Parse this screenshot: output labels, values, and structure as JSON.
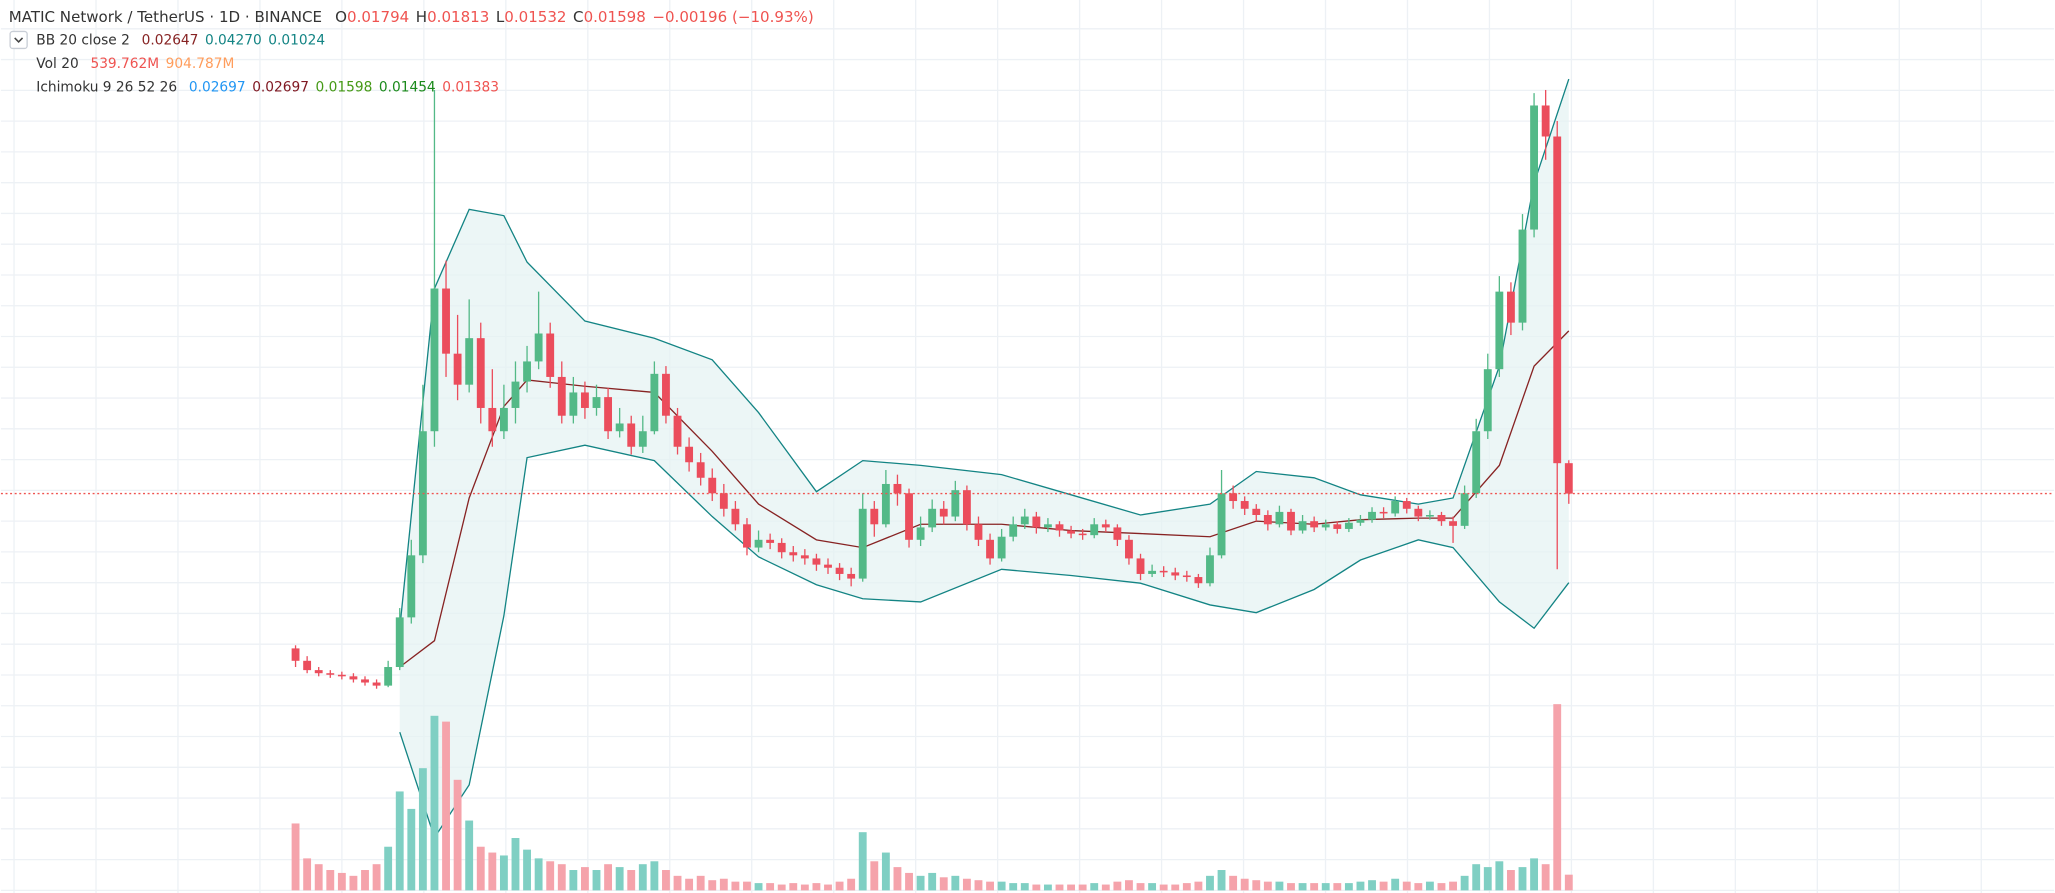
{
  "header": {
    "symbol": "MATIC Network / TetherUS · 1D · BINANCE",
    "quote_color": "#ef5350",
    "quote": [
      {
        "key": "O",
        "value": "0.01794"
      },
      {
        "key": "H",
        "value": "0.01813"
      },
      {
        "key": "L",
        "value": "0.01532"
      },
      {
        "key": "C",
        "value": "0.01598"
      }
    ],
    "change": "−0.00196 (−10.93%)"
  },
  "indicators": [
    {
      "name": "BB 20 close 2",
      "values": [
        {
          "text": "0.02647",
          "color": "#872323"
        },
        {
          "text": "0.04270",
          "color": "#138484"
        },
        {
          "text": "0.01024",
          "color": "#138484"
        }
      ]
    },
    {
      "name": "Vol 20",
      "values": [
        {
          "text": "539.762M",
          "color": "#ef5350"
        },
        {
          "text": "904.787M",
          "color": "#ff9d5c"
        }
      ]
    },
    {
      "name": "Ichimoku 9 26 52 26",
      "values": [
        {
          "text": "0.02697",
          "color": "#2196f3"
        },
        {
          "text": "0.02697",
          "color": "#801922"
        },
        {
          "text": "0.01598",
          "color": "#459915"
        },
        {
          "text": "0.01454",
          "color": "#1b8a1b"
        },
        {
          "text": "0.01383",
          "color": "#ef5350"
        }
      ]
    }
  ],
  "chart_data": {
    "type": "candlestick",
    "ylim": [
      -0.0096,
      0.0478
    ],
    "volume_ylim": [
      0,
      15300
    ],
    "up_color": "#53b987",
    "down_color": "#eb4d5c",
    "volume_up_color": "#7fcfc3",
    "volume_down_color": "#f5a3ab",
    "price_line_color": "#ef5350",
    "candles": [
      [
        0.006,
        0.0062,
        0.0048,
        0.0052
      ],
      [
        0.0052,
        0.0055,
        0.0044,
        0.0046
      ],
      [
        0.0046,
        0.0048,
        0.0042,
        0.0044
      ],
      [
        0.0044,
        0.0046,
        0.0041,
        0.0043
      ],
      [
        0.0043,
        0.0045,
        0.004,
        0.0042
      ],
      [
        0.0042,
        0.0044,
        0.0038,
        0.004
      ],
      [
        0.004,
        0.0042,
        0.0036,
        0.0038
      ],
      [
        0.0038,
        0.004,
        0.0034,
        0.0036
      ],
      [
        0.0036,
        0.0052,
        0.0035,
        0.0048
      ],
      [
        0.0048,
        0.0086,
        0.0046,
        0.008
      ],
      [
        0.008,
        0.013,
        0.0076,
        0.012
      ],
      [
        0.012,
        0.023,
        0.0115,
        0.02
      ],
      [
        0.02,
        0.042,
        0.019,
        0.0292
      ],
      [
        0.0292,
        0.031,
        0.0235,
        0.025
      ],
      [
        0.025,
        0.0275,
        0.022,
        0.023
      ],
      [
        0.023,
        0.0285,
        0.0225,
        0.026
      ],
      [
        0.026,
        0.027,
        0.0205,
        0.0215
      ],
      [
        0.0215,
        0.024,
        0.019,
        0.02
      ],
      [
        0.02,
        0.023,
        0.0195,
        0.0215
      ],
      [
        0.0215,
        0.0245,
        0.0205,
        0.0232
      ],
      [
        0.0232,
        0.0255,
        0.0225,
        0.0245
      ],
      [
        0.0245,
        0.029,
        0.024,
        0.0263
      ],
      [
        0.0263,
        0.027,
        0.0228,
        0.0235
      ],
      [
        0.0235,
        0.0245,
        0.0205,
        0.021
      ],
      [
        0.021,
        0.0235,
        0.0205,
        0.0225
      ],
      [
        0.0225,
        0.0232,
        0.0208,
        0.0215
      ],
      [
        0.0215,
        0.023,
        0.021,
        0.0222
      ],
      [
        0.0222,
        0.0228,
        0.0195,
        0.02
      ],
      [
        0.02,
        0.0215,
        0.0196,
        0.0205
      ],
      [
        0.0205,
        0.021,
        0.0185,
        0.019
      ],
      [
        0.019,
        0.021,
        0.0186,
        0.02
      ],
      [
        0.02,
        0.0245,
        0.0198,
        0.0237
      ],
      [
        0.0237,
        0.0242,
        0.0205,
        0.021
      ],
      [
        0.021,
        0.0215,
        0.0185,
        0.019
      ],
      [
        0.019,
        0.0196,
        0.0174,
        0.018
      ],
      [
        0.018,
        0.0186,
        0.0165,
        0.017
      ],
      [
        0.017,
        0.0176,
        0.0155,
        0.016
      ],
      [
        0.016,
        0.0166,
        0.0145,
        0.015
      ],
      [
        0.015,
        0.0155,
        0.0136,
        0.014
      ],
      [
        0.014,
        0.0144,
        0.012,
        0.0125
      ],
      [
        0.0125,
        0.0136,
        0.0122,
        0.013
      ],
      [
        0.013,
        0.0134,
        0.0124,
        0.0128
      ],
      [
        0.0128,
        0.0131,
        0.0118,
        0.0122
      ],
      [
        0.0122,
        0.0126,
        0.0116,
        0.012
      ],
      [
        0.012,
        0.0124,
        0.0114,
        0.0118
      ],
      [
        0.0118,
        0.0121,
        0.011,
        0.0114
      ],
      [
        0.0114,
        0.0118,
        0.0108,
        0.0112
      ],
      [
        0.0112,
        0.0115,
        0.0104,
        0.0108
      ],
      [
        0.0108,
        0.0112,
        0.01,
        0.0105
      ],
      [
        0.0105,
        0.016,
        0.0103,
        0.015
      ],
      [
        0.015,
        0.0155,
        0.0132,
        0.014
      ],
      [
        0.014,
        0.0175,
        0.0138,
        0.0166
      ],
      [
        0.0166,
        0.0172,
        0.0152,
        0.016
      ],
      [
        0.016,
        0.0163,
        0.0125,
        0.013
      ],
      [
        0.013,
        0.0145,
        0.0126,
        0.0138
      ],
      [
        0.0138,
        0.0156,
        0.0135,
        0.015
      ],
      [
        0.015,
        0.0155,
        0.014,
        0.0145
      ],
      [
        0.0145,
        0.0168,
        0.0142,
        0.0162
      ],
      [
        0.0162,
        0.0165,
        0.0136,
        0.014
      ],
      [
        0.014,
        0.0145,
        0.0126,
        0.013
      ],
      [
        0.013,
        0.0134,
        0.0114,
        0.0118
      ],
      [
        0.0118,
        0.0137,
        0.0116,
        0.0132
      ],
      [
        0.0132,
        0.0145,
        0.0129,
        0.014
      ],
      [
        0.014,
        0.015,
        0.0137,
        0.0145
      ],
      [
        0.0145,
        0.0148,
        0.0134,
        0.0138
      ],
      [
        0.0138,
        0.0144,
        0.0135,
        0.014
      ],
      [
        0.014,
        0.0142,
        0.0132,
        0.0136
      ],
      [
        0.0136,
        0.0139,
        0.0131,
        0.0134
      ],
      [
        0.0134,
        0.0137,
        0.013,
        0.0133
      ],
      [
        0.0133,
        0.0144,
        0.0131,
        0.014
      ],
      [
        0.014,
        0.0143,
        0.0135,
        0.0138
      ],
      [
        0.0138,
        0.014,
        0.0126,
        0.013
      ],
      [
        0.013,
        0.0133,
        0.0114,
        0.0118
      ],
      [
        0.0118,
        0.0121,
        0.0104,
        0.0108
      ],
      [
        0.0108,
        0.0114,
        0.0106,
        0.011
      ],
      [
        0.011,
        0.0113,
        0.0106,
        0.0109
      ],
      [
        0.0109,
        0.0112,
        0.0104,
        0.0107
      ],
      [
        0.0107,
        0.011,
        0.0103,
        0.0106
      ],
      [
        0.0106,
        0.0108,
        0.0099,
        0.0102
      ],
      [
        0.0102,
        0.0125,
        0.01,
        0.012
      ],
      [
        0.012,
        0.0175,
        0.0118,
        0.016
      ],
      [
        0.016,
        0.0165,
        0.015,
        0.0155
      ],
      [
        0.0155,
        0.0158,
        0.0146,
        0.015
      ],
      [
        0.015,
        0.0153,
        0.0142,
        0.0146
      ],
      [
        0.0146,
        0.0149,
        0.0136,
        0.014
      ],
      [
        0.014,
        0.0152,
        0.0138,
        0.0148
      ],
      [
        0.0148,
        0.015,
        0.0133,
        0.0136
      ],
      [
        0.0136,
        0.0146,
        0.0134,
        0.0142
      ],
      [
        0.0142,
        0.0145,
        0.0135,
        0.0138
      ],
      [
        0.0138,
        0.0143,
        0.0136,
        0.014
      ],
      [
        0.014,
        0.0142,
        0.0134,
        0.0137
      ],
      [
        0.0137,
        0.0144,
        0.0135,
        0.0141
      ],
      [
        0.0141,
        0.0146,
        0.0139,
        0.0143
      ],
      [
        0.0143,
        0.0151,
        0.0141,
        0.0148
      ],
      [
        0.0148,
        0.0151,
        0.0144,
        0.0147
      ],
      [
        0.0147,
        0.0158,
        0.0145,
        0.0155
      ],
      [
        0.0155,
        0.0157,
        0.0147,
        0.015
      ],
      [
        0.015,
        0.0152,
        0.0142,
        0.0145
      ],
      [
        0.0145,
        0.0149,
        0.0143,
        0.0146
      ],
      [
        0.0146,
        0.0148,
        0.0139,
        0.0142
      ],
      [
        0.0142,
        0.0145,
        0.0128,
        0.0139
      ],
      [
        0.0139,
        0.0165,
        0.0137,
        0.016
      ],
      [
        0.016,
        0.0208,
        0.0157,
        0.02
      ],
      [
        0.02,
        0.025,
        0.0195,
        0.024
      ],
      [
        0.024,
        0.03,
        0.0235,
        0.029
      ],
      [
        0.029,
        0.0296,
        0.0262,
        0.027
      ],
      [
        0.027,
        0.034,
        0.0265,
        0.033
      ],
      [
        0.033,
        0.0418,
        0.0325,
        0.041
      ],
      [
        0.041,
        0.042,
        0.0375,
        0.039
      ],
      [
        0.039,
        0.04,
        0.0111,
        0.01794
      ],
      [
        0.01794,
        0.01813,
        0.01532,
        0.01598
      ]
    ],
    "volumes": [
      2300,
      1100,
      900,
      700,
      600,
      500,
      700,
      900,
      1500,
      3400,
      2800,
      4200,
      6000,
      5800,
      3800,
      2400,
      1500,
      1300,
      1200,
      1800,
      1400,
      1100,
      1000,
      900,
      700,
      800,
      700,
      900,
      800,
      700,
      900,
      1000,
      700,
      500,
      400,
      500,
      350,
      400,
      300,
      300,
      250,
      250,
      200,
      250,
      200,
      250,
      200,
      300,
      400,
      2000,
      1000,
      1300,
      800,
      600,
      500,
      600,
      450,
      500,
      400,
      350,
      300,
      300,
      250,
      250,
      200,
      200,
      200,
      200,
      200,
      250,
      200,
      300,
      350,
      250,
      250,
      200,
      200,
      250,
      300,
      500,
      700,
      500,
      400,
      350,
      300,
      300,
      250,
      250,
      250,
      250,
      250,
      250,
      300,
      350,
      300,
      400,
      300,
      250,
      300,
      250,
      300,
      500,
      900,
      800,
      1000,
      700,
      800,
      1100,
      900,
      6400,
      539.762
    ],
    "bollinger": {
      "band_color": "#138484",
      "basis_color": "#872323",
      "fill": "#e4f2f2",
      "x": [
        9,
        12,
        15,
        18,
        20,
        25,
        31,
        36,
        40,
        45,
        49,
        54,
        61,
        67,
        73,
        79,
        83,
        88,
        92,
        97,
        100,
        104,
        107,
        110
      ],
      "upper": [
        0.0073,
        0.0292,
        0.0343,
        0.0339,
        0.0309,
        0.0271,
        0.026,
        0.0246,
        0.0212,
        0.0161,
        0.0181,
        0.0178,
        0.0172,
        0.0159,
        0.0146,
        0.0153,
        0.0174,
        0.017,
        0.0159,
        0.0153,
        0.0157,
        0.0242,
        0.036,
        0.0427
      ],
      "basis": [
        0.0048,
        0.0065,
        0.0157,
        0.0216,
        0.0233,
        0.0229,
        0.0225,
        0.0187,
        0.0153,
        0.013,
        0.0125,
        0.014,
        0.014,
        0.0136,
        0.0134,
        0.0132,
        0.0142,
        0.014,
        0.0143,
        0.0144,
        0.0144,
        0.0178,
        0.0242,
        0.02647
      ],
      "lower": [
        0.0006,
        -0.0062,
        -0.0028,
        0.0081,
        0.0183,
        0.0191,
        0.0181,
        0.0145,
        0.0119,
        0.0101,
        0.0092,
        0.009,
        0.0111,
        0.0107,
        0.0102,
        0.0088,
        0.0083,
        0.0098,
        0.0117,
        0.013,
        0.0125,
        0.009,
        0.0073,
        0.01024
      ]
    }
  }
}
